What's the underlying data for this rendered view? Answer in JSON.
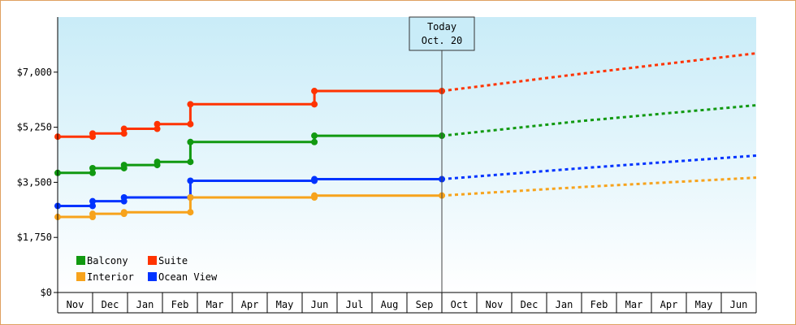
{
  "chart_data": {
    "type": "line",
    "title": "",
    "xlabel": "",
    "ylabel": "",
    "ylim": [
      0,
      8750
    ],
    "y_ticks": [
      0,
      1750,
      3500,
      5250,
      7000
    ],
    "y_tick_labels": [
      "$0",
      "$1,750",
      "$3,500",
      "$5,250",
      "$7,000"
    ],
    "x_labels": [
      "Nov",
      "Dec",
      "Jan",
      "Feb",
      "Mar",
      "Apr",
      "May",
      "Jun",
      "Jul",
      "Aug",
      "Sep",
      "Oct",
      "Nov",
      "Dec",
      "Jan",
      "Feb",
      "Mar",
      "Apr",
      "May",
      "Jun"
    ],
    "today_marker": {
      "line1": "Today",
      "line2": "Oct. 20",
      "x": 11.0
    },
    "legend": [
      {
        "name": "Balcony",
        "color": "#119911"
      },
      {
        "name": "Suite",
        "color": "#ff3300"
      },
      {
        "name": "Interior",
        "color": "#f7a31c"
      },
      {
        "name": "Ocean View",
        "color": "#0033ff"
      }
    ],
    "grid": false,
    "legend_position": "bottom-left",
    "series": [
      {
        "name": "Suite",
        "color": "#ff3300",
        "points": [
          {
            "x": 0.0,
            "y": 4950
          },
          {
            "x": 1.0,
            "y": 4950
          },
          {
            "x": 1.0,
            "y": 5050
          },
          {
            "x": 1.9,
            "y": 5050
          },
          {
            "x": 1.9,
            "y": 5200
          },
          {
            "x": 2.85,
            "y": 5200
          },
          {
            "x": 2.85,
            "y": 5350
          },
          {
            "x": 3.8,
            "y": 5350
          },
          {
            "x": 3.8,
            "y": 5980
          },
          {
            "x": 7.35,
            "y": 5980
          },
          {
            "x": 7.35,
            "y": 6400
          },
          {
            "x": 11.0,
            "y": 6400
          }
        ],
        "markers": [
          {
            "x": 0.0,
            "y": 4950
          },
          {
            "x": 1.0,
            "y": 4950
          },
          {
            "x": 1.0,
            "y": 5050
          },
          {
            "x": 1.9,
            "y": 5050
          },
          {
            "x": 1.9,
            "y": 5200
          },
          {
            "x": 2.85,
            "y": 5200
          },
          {
            "x": 2.85,
            "y": 5350
          },
          {
            "x": 3.8,
            "y": 5350
          },
          {
            "x": 3.8,
            "y": 5980
          },
          {
            "x": 7.35,
            "y": 5980
          },
          {
            "x": 7.35,
            "y": 6400
          },
          {
            "x": 11.0,
            "y": 6400
          }
        ],
        "forecast": [
          {
            "x": 11.0,
            "y": 6400
          },
          {
            "x": 15.0,
            "y": 6950
          },
          {
            "x": 20.0,
            "y": 7600
          }
        ]
      },
      {
        "name": "Balcony",
        "color": "#119911",
        "points": [
          {
            "x": 0.0,
            "y": 3800
          },
          {
            "x": 1.0,
            "y": 3800
          },
          {
            "x": 1.0,
            "y": 3950
          },
          {
            "x": 1.9,
            "y": 3950
          },
          {
            "x": 1.9,
            "y": 4050
          },
          {
            "x": 2.85,
            "y": 4050
          },
          {
            "x": 2.85,
            "y": 4150
          },
          {
            "x": 3.8,
            "y": 4150
          },
          {
            "x": 3.8,
            "y": 4780
          },
          {
            "x": 7.35,
            "y": 4780
          },
          {
            "x": 7.35,
            "y": 4980
          },
          {
            "x": 11.0,
            "y": 4980
          }
        ],
        "markers": [
          {
            "x": 0.0,
            "y": 3800
          },
          {
            "x": 1.0,
            "y": 3800
          },
          {
            "x": 1.0,
            "y": 3950
          },
          {
            "x": 1.9,
            "y": 3950
          },
          {
            "x": 1.9,
            "y": 4050
          },
          {
            "x": 2.85,
            "y": 4050
          },
          {
            "x": 2.85,
            "y": 4150
          },
          {
            "x": 3.8,
            "y": 4150
          },
          {
            "x": 3.8,
            "y": 4780
          },
          {
            "x": 7.35,
            "y": 4780
          },
          {
            "x": 7.35,
            "y": 4980
          },
          {
            "x": 11.0,
            "y": 4980
          }
        ],
        "forecast": [
          {
            "x": 11.0,
            "y": 4980
          },
          {
            "x": 15.0,
            "y": 5450
          },
          {
            "x": 20.0,
            "y": 5950
          }
        ]
      },
      {
        "name": "Ocean View",
        "color": "#0033ff",
        "points": [
          {
            "x": 0.0,
            "y": 2750
          },
          {
            "x": 1.0,
            "y": 2750
          },
          {
            "x": 1.0,
            "y": 2900
          },
          {
            "x": 1.9,
            "y": 2900
          },
          {
            "x": 1.9,
            "y": 3020
          },
          {
            "x": 3.8,
            "y": 3020
          },
          {
            "x": 3.8,
            "y": 3550
          },
          {
            "x": 7.35,
            "y": 3550
          },
          {
            "x": 7.35,
            "y": 3600
          },
          {
            "x": 11.0,
            "y": 3600
          }
        ],
        "markers": [
          {
            "x": 0.0,
            "y": 2750
          },
          {
            "x": 1.0,
            "y": 2750
          },
          {
            "x": 1.0,
            "y": 2900
          },
          {
            "x": 1.9,
            "y": 2900
          },
          {
            "x": 1.9,
            "y": 3020
          },
          {
            "x": 3.8,
            "y": 3020
          },
          {
            "x": 3.8,
            "y": 3550
          },
          {
            "x": 7.35,
            "y": 3550
          },
          {
            "x": 7.35,
            "y": 3600
          },
          {
            "x": 11.0,
            "y": 3600
          }
        ],
        "forecast": [
          {
            "x": 11.0,
            "y": 3600
          },
          {
            "x": 15.0,
            "y": 3950
          },
          {
            "x": 20.0,
            "y": 4350
          }
        ]
      },
      {
        "name": "Interior",
        "color": "#f7a31c",
        "points": [
          {
            "x": 0.0,
            "y": 2400
          },
          {
            "x": 1.0,
            "y": 2400
          },
          {
            "x": 1.0,
            "y": 2500
          },
          {
            "x": 1.9,
            "y": 2500
          },
          {
            "x": 1.9,
            "y": 2550
          },
          {
            "x": 3.8,
            "y": 2550
          },
          {
            "x": 3.8,
            "y": 3020
          },
          {
            "x": 7.35,
            "y": 3020
          },
          {
            "x": 7.35,
            "y": 3080
          },
          {
            "x": 11.0,
            "y": 3080
          }
        ],
        "markers": [
          {
            "x": 0.0,
            "y": 2400
          },
          {
            "x": 1.0,
            "y": 2400
          },
          {
            "x": 1.0,
            "y": 2500
          },
          {
            "x": 1.9,
            "y": 2500
          },
          {
            "x": 1.9,
            "y": 2550
          },
          {
            "x": 3.8,
            "y": 2550
          },
          {
            "x": 3.8,
            "y": 3020
          },
          {
            "x": 7.35,
            "y": 3020
          },
          {
            "x": 7.35,
            "y": 3080
          },
          {
            "x": 11.0,
            "y": 3080
          }
        ],
        "forecast": [
          {
            "x": 11.0,
            "y": 3080
          },
          {
            "x": 15.0,
            "y": 3350
          },
          {
            "x": 20.0,
            "y": 3650
          }
        ]
      }
    ]
  }
}
